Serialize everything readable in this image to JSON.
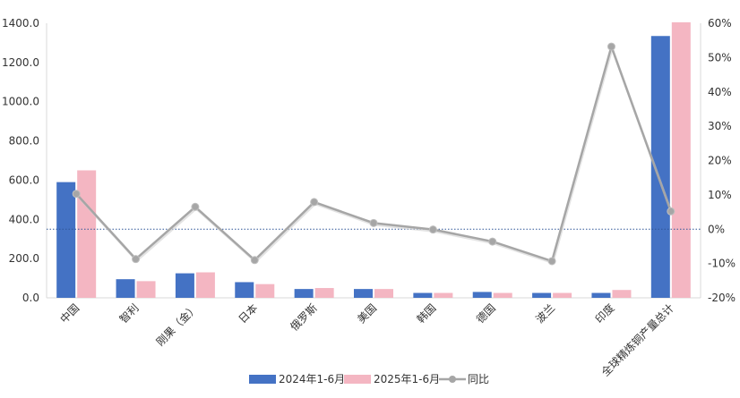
{
  "chart_data": {
    "type": "bar",
    "categories": [
      "中国",
      "智利",
      "刚果（金）",
      "日本",
      "俄罗斯",
      "美国",
      "韩国",
      "德国",
      "波兰",
      "印度",
      "全球精炼铜产量总计"
    ],
    "series": [
      {
        "name": "2024年1-6月",
        "type": "bar",
        "color": "#4472C4",
        "values": [
          590,
          95,
          125,
          80,
          45,
          45,
          25,
          30,
          25,
          25,
          1335
        ]
      },
      {
        "name": "2025年1-6月",
        "type": "bar",
        "color": "#F4B6C2",
        "values": [
          650,
          85,
          130,
          70,
          50,
          45,
          25,
          25,
          25,
          40,
          1405
        ]
      },
      {
        "name": "同比",
        "type": "line",
        "axis": "right",
        "color": "#A6A6A6",
        "values": [
          10.3,
          -8.7,
          6.5,
          -9.0,
          7.9,
          1.8,
          -0.1,
          -3.6,
          -9.3,
          53.2,
          5.2
        ]
      }
    ],
    "y_left": {
      "min": 0,
      "max": 1400,
      "step": 200,
      "ticks": [
        "0.0",
        "200.0",
        "400.0",
        "600.0",
        "800.0",
        "1000.0",
        "1200.0",
        "1400.0"
      ]
    },
    "y_right": {
      "min": -20,
      "max": 60,
      "step": 10,
      "ticks": [
        "-20%",
        "-10%",
        "0%",
        "10%",
        "20%",
        "30%",
        "40%",
        "50%",
        "60%"
      ]
    },
    "reference_line": {
      "axis": "right",
      "value": 0,
      "style": "dotted",
      "color": "#2F5597"
    },
    "legend": {
      "position": "bottom"
    },
    "grid": false
  }
}
